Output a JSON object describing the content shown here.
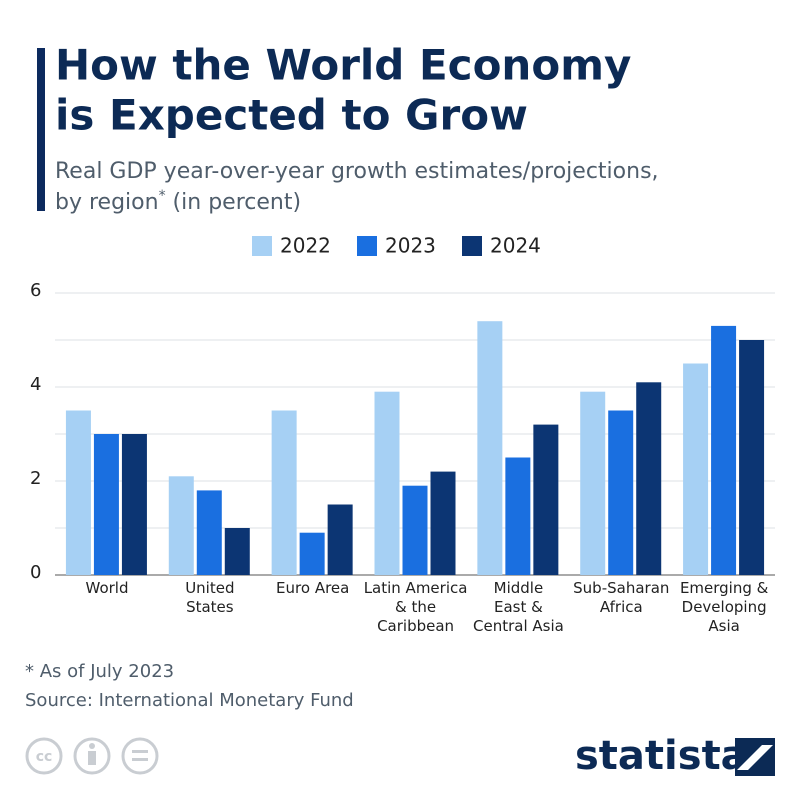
{
  "chart_data": {
    "type": "bar",
    "title": [
      "How the World Economy",
      "is Expected to Grow"
    ],
    "subtitle": [
      "Real GDP year-over-year growth estimates/projections,",
      "by region",
      "*",
      " (in percent)"
    ],
    "categories": [
      "World",
      "United\nStates",
      "Euro Area",
      "Latin America\n& the\nCaribbean",
      "Middle\nEast &\nCentral Asia",
      "Sub-Saharan\nAfrica",
      "Emerging &\nDeveloping\nAsia"
    ],
    "series": [
      {
        "name": "2022",
        "color": "#a6d0f4",
        "values": [
          3.5,
          2.1,
          3.5,
          3.9,
          5.4,
          3.9,
          4.5
        ]
      },
      {
        "name": "2023",
        "color": "#1a6fe0",
        "values": [
          3.0,
          1.8,
          0.9,
          1.9,
          2.5,
          3.5,
          5.3
        ]
      },
      {
        "name": "2024",
        "color": "#0c3573",
        "values": [
          3.0,
          1.0,
          1.5,
          2.2,
          3.2,
          4.1,
          5.0
        ]
      }
    ],
    "ylim": [
      0,
      6
    ],
    "yticks": [
      0,
      2,
      4,
      6
    ],
    "minor_yticks": [
      1,
      3,
      5
    ],
    "grid": true,
    "legend": "top",
    "footnote": "* As of July 2023",
    "source": "Source: International Monetary Fund",
    "brand": "statista"
  }
}
